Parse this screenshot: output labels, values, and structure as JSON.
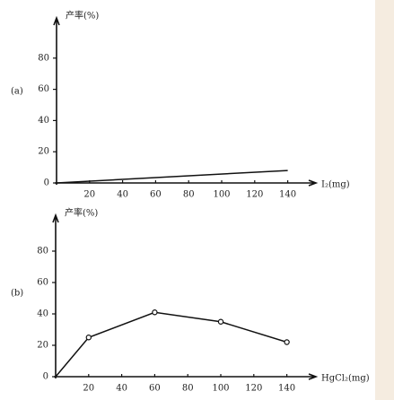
{
  "chart_data": [
    {
      "type": "line",
      "panel_label": "(a)",
      "y_label": "产率(%)",
      "x_label": "I₂(mg)",
      "x": [
        0,
        140
      ],
      "values": [
        0,
        8
      ],
      "color": "#111",
      "markers": false,
      "xlim": [
        0,
        150
      ],
      "ylim": [
        0,
        100
      ],
      "xticks": [
        20,
        40,
        60,
        80,
        100,
        120,
        140
      ],
      "yticks": [
        0,
        20,
        40,
        60,
        80
      ]
    },
    {
      "type": "line",
      "panel_label": "(b)",
      "y_label": "产率(%)",
      "x_label": "HgCl₂(mg)",
      "x": [
        0,
        20,
        60,
        100,
        140
      ],
      "values": [
        0,
        25,
        41,
        35,
        22
      ],
      "color": "#111",
      "markers": true,
      "xlim": [
        0,
        150
      ],
      "ylim": [
        0,
        100
      ],
      "xticks": [
        20,
        40,
        60,
        80,
        100,
        120,
        140
      ],
      "yticks": [
        0,
        20,
        40,
        60,
        80
      ]
    }
  ]
}
